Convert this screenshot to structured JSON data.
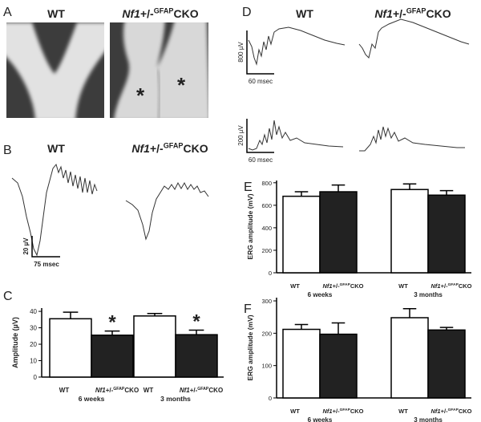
{
  "panels": {
    "A": {
      "letter": "A",
      "labels": [
        "WT",
        {
          "gene": "Nf1",
          "mid": "+/-",
          "sup": "GFAP",
          "tail": "CKO"
        }
      ],
      "marks": [
        "*",
        "*"
      ]
    },
    "B": {
      "letter": "B",
      "labels": [
        "WT",
        {
          "gene": "Nf1",
          "mid": "+/-",
          "sup": "GFAP",
          "tail": "CKO"
        }
      ],
      "scale": {
        "y": "20 µV",
        "x": "75 msec"
      }
    },
    "D": {
      "letter": "D",
      "labels": [
        "WT",
        {
          "gene": "Nf1",
          "mid": "+/-",
          "sup": "GFAP",
          "tail": "CKO"
        }
      ],
      "scales": [
        {
          "y": "800 µV",
          "x": "60 msec"
        },
        {
          "y": "200 µV",
          "x": "60 msec"
        }
      ]
    }
  },
  "chart_data": [
    {
      "letter": "C",
      "type": "bar",
      "ylabel": "Amplitude (µV)",
      "categories": [
        "6 weeks",
        "3 months"
      ],
      "series": [
        {
          "name": "WT",
          "color": "#ffffff",
          "values": [
            35.5,
            37.2
          ],
          "errors": [
            4,
            1.5
          ]
        },
        {
          "name": {
            "gene": "Nf1",
            "mid": "+/-",
            "sup": "GFAP",
            "tail": "CKO"
          },
          "color": "#222222",
          "values": [
            25.5,
            25.8
          ],
          "errors": [
            2.5,
            2.8
          ],
          "significance": [
            "*",
            "*"
          ]
        }
      ],
      "ylim": [
        0,
        42
      ],
      "yticks": [
        0,
        10,
        20,
        30,
        40
      ]
    },
    {
      "letter": "E",
      "type": "bar",
      "ylabel": "ERG amplitude (mV)",
      "categories": [
        "6 weeks",
        "3 months"
      ],
      "series": [
        {
          "name": "WT",
          "color": "#ffffff",
          "values": [
            680,
            740
          ],
          "errors": [
            40,
            50
          ]
        },
        {
          "name": {
            "gene": "Nf1",
            "mid": "+/-",
            "sup": "GFAP",
            "tail": "CKO"
          },
          "color": "#222222",
          "values": [
            720,
            690
          ],
          "errors": [
            60,
            40
          ]
        }
      ],
      "ylim": [
        0,
        820
      ],
      "yticks": [
        0,
        200,
        400,
        600,
        800
      ]
    },
    {
      "letter": "F",
      "type": "bar",
      "ylabel": "ERG amplitude (mV)",
      "categories": [
        "6 weeks",
        "3 months"
      ],
      "series": [
        {
          "name": "WT",
          "color": "#ffffff",
          "values": [
            212,
            248
          ],
          "errors": [
            15,
            28
          ]
        },
        {
          "name": {
            "gene": "Nf1",
            "mid": "+/-",
            "sup": "GFAP",
            "tail": "CKO"
          },
          "color": "#222222",
          "values": [
            197,
            210
          ],
          "errors": [
            35,
            8
          ]
        }
      ],
      "ylim": [
        0,
        310
      ],
      "yticks": [
        0,
        100,
        200,
        300
      ]
    }
  ]
}
